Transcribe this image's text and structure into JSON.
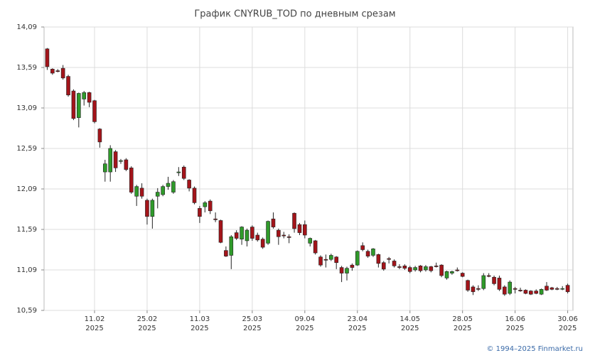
{
  "chart_data": {
    "type": "candlestick",
    "title": "График CNYRUB_TOD по дневным срезам",
    "footer": "© 1994–2025 Finmarket.ru",
    "categories": [
      null,
      null,
      null,
      null,
      null,
      null,
      null,
      null,
      null,
      "11.02",
      null,
      null,
      null,
      null,
      null,
      null,
      null,
      null,
      null,
      "25.02",
      null,
      null,
      null,
      null,
      null,
      null,
      null,
      null,
      null,
      "11.03",
      null,
      null,
      null,
      null,
      null,
      null,
      null,
      null,
      null,
      "25.03",
      null,
      null,
      null,
      null,
      null,
      null,
      null,
      null,
      null,
      "09.04",
      null,
      null,
      null,
      null,
      null,
      null,
      null,
      null,
      null,
      "23.04",
      null,
      null,
      null,
      null,
      null,
      null,
      null,
      null,
      null,
      "14.05",
      null,
      null,
      null,
      null,
      null,
      null,
      null,
      null,
      null,
      "28.05",
      null,
      null,
      null,
      null,
      null,
      null,
      null,
      null,
      null,
      "16.06",
      null,
      null,
      null,
      null,
      null,
      null,
      null,
      null,
      null,
      "30.06"
    ],
    "category_sublabel": "2025",
    "open": [
      13.82,
      13.57,
      13.55,
      13.58,
      13.48,
      13.3,
      12.97,
      13.2,
      13.28,
      13.18,
      12.83,
      12.3,
      12.3,
      12.55,
      12.43,
      12.45,
      12.35,
      12.0,
      12.1,
      11.95,
      11.75,
      12.0,
      12.02,
      12.12,
      12.05,
      12.29,
      12.36,
      12.2,
      12.1,
      11.85,
      11.87,
      11.94,
      11.72,
      11.7,
      11.33,
      11.27,
      11.55,
      11.47,
      11.45,
      11.62,
      11.52,
      11.47,
      11.42,
      11.72,
      11.58,
      11.52,
      11.5,
      11.79,
      11.65,
      11.65,
      11.42,
      11.45,
      11.25,
      11.22,
      11.22,
      11.25,
      11.12,
      11.05,
      11.15,
      11.15,
      11.39,
      11.32,
      11.27,
      11.28,
      11.18,
      11.23,
      11.2,
      11.13,
      11.14,
      11.12,
      11.09,
      11.14,
      11.09,
      11.13,
      11.14,
      11.15,
      10.99,
      11.05,
      11.09,
      11.05,
      10.96,
      10.88,
      10.86,
      10.86,
      11.02,
      11.0,
      10.99,
      10.88,
      10.8,
      10.86,
      10.84,
      10.84,
      10.83,
      10.83,
      10.79,
      10.89,
      10.87,
      10.86,
      10.86,
      10.9
    ],
    "high": [
      13.83,
      13.58,
      13.57,
      13.62,
      13.5,
      13.32,
      13.28,
      13.3,
      13.29,
      13.19,
      12.84,
      12.45,
      12.63,
      12.57,
      12.46,
      12.47,
      12.37,
      12.14,
      12.16,
      11.97,
      11.97,
      12.1,
      12.14,
      12.24,
      12.2,
      12.36,
      12.38,
      12.21,
      12.12,
      11.88,
      11.94,
      11.96,
      11.8,
      11.71,
      11.38,
      11.52,
      11.58,
      11.63,
      11.6,
      11.64,
      11.55,
      11.49,
      11.7,
      11.8,
      11.6,
      11.56,
      11.53,
      11.8,
      11.67,
      11.7,
      11.49,
      11.46,
      11.27,
      11.28,
      11.29,
      11.26,
      11.14,
      11.13,
      11.17,
      11.33,
      11.43,
      11.34,
      11.36,
      11.29,
      11.2,
      11.25,
      11.22,
      11.16,
      11.16,
      11.14,
      11.14,
      11.15,
      11.15,
      11.14,
      11.18,
      11.16,
      11.08,
      11.08,
      11.12,
      11.06,
      10.97,
      10.9,
      10.9,
      11.05,
      11.05,
      11.02,
      11.02,
      10.9,
      10.96,
      10.88,
      10.87,
      10.85,
      10.84,
      10.85,
      10.86,
      10.94,
      10.88,
      10.88,
      10.89,
      10.92
    ],
    "low": [
      13.56,
      13.5,
      13.53,
      13.44,
      13.23,
      12.94,
      12.85,
      13.12,
      13.1,
      12.9,
      12.6,
      12.18,
      12.18,
      12.3,
      12.4,
      12.31,
      12.03,
      11.88,
      11.97,
      11.65,
      11.6,
      11.85,
      12.0,
      12.08,
      12.03,
      12.25,
      12.2,
      12.06,
      11.9,
      11.67,
      11.8,
      11.78,
      11.68,
      11.42,
      11.25,
      11.1,
      11.46,
      11.4,
      11.38,
      11.45,
      11.44,
      11.35,
      11.4,
      11.6,
      11.4,
      11.48,
      11.42,
      11.55,
      11.52,
      11.48,
      11.38,
      11.28,
      11.13,
      11.12,
      11.2,
      11.1,
      10.94,
      10.96,
      11.08,
      11.14,
      11.32,
      11.24,
      11.25,
      11.12,
      11.08,
      11.17,
      11.12,
      11.1,
      11.09,
      11.05,
      11.07,
      11.06,
      11.07,
      11.06,
      11.12,
      11.0,
      10.97,
      11.03,
      11.07,
      11.0,
      10.82,
      10.78,
      10.83,
      10.84,
      11.0,
      10.9,
      10.83,
      10.77,
      10.78,
      10.8,
      10.82,
      10.79,
      10.78,
      10.79,
      10.78,
      10.83,
      10.84,
      10.84,
      10.84,
      10.8
    ],
    "close": [
      13.6,
      13.52,
      13.54,
      13.46,
      13.25,
      12.96,
      13.27,
      13.28,
      13.16,
      12.92,
      12.67,
      12.4,
      12.59,
      12.35,
      12.44,
      12.33,
      12.05,
      12.12,
      12.0,
      11.75,
      11.95,
      12.05,
      12.12,
      12.16,
      12.18,
      12.3,
      12.22,
      12.1,
      11.92,
      11.75,
      11.92,
      11.82,
      11.71,
      11.43,
      11.26,
      11.5,
      11.48,
      11.62,
      11.58,
      11.48,
      11.46,
      11.37,
      11.69,
      11.62,
      11.5,
      11.51,
      11.49,
      11.6,
      11.55,
      11.52,
      11.48,
      11.3,
      11.15,
      11.21,
      11.27,
      11.18,
      11.05,
      11.11,
      11.12,
      11.32,
      11.34,
      11.26,
      11.35,
      11.17,
      11.1,
      11.22,
      11.14,
      11.12,
      11.11,
      11.07,
      11.12,
      11.08,
      11.13,
      11.08,
      11.13,
      11.02,
      11.07,
      11.07,
      11.08,
      11.01,
      10.84,
      10.82,
      10.85,
      11.02,
      11.01,
      10.92,
      10.85,
      10.79,
      10.94,
      10.85,
      10.83,
      10.8,
      10.79,
      10.8,
      10.85,
      10.84,
      10.85,
      10.85,
      10.86,
      10.82
    ],
    "up_color": "#2f9a2a",
    "down_color": "#a3141a",
    "xlim": [
      -0.6,
      100.0
    ],
    "ylim": [
      10.59,
      14.09
    ],
    "yticks": [
      {
        "value": 10.59,
        "label": "10,59"
      },
      {
        "value": 11.09,
        "label": "11,09"
      },
      {
        "value": 11.59,
        "label": "11,59"
      },
      {
        "value": 12.09,
        "label": "12,09"
      },
      {
        "value": 12.59,
        "label": "12,59"
      },
      {
        "value": 13.09,
        "label": "13,09"
      },
      {
        "value": 13.59,
        "label": "13,59"
      },
      {
        "value": 14.09,
        "label": "14,09"
      }
    ],
    "grid": true
  }
}
